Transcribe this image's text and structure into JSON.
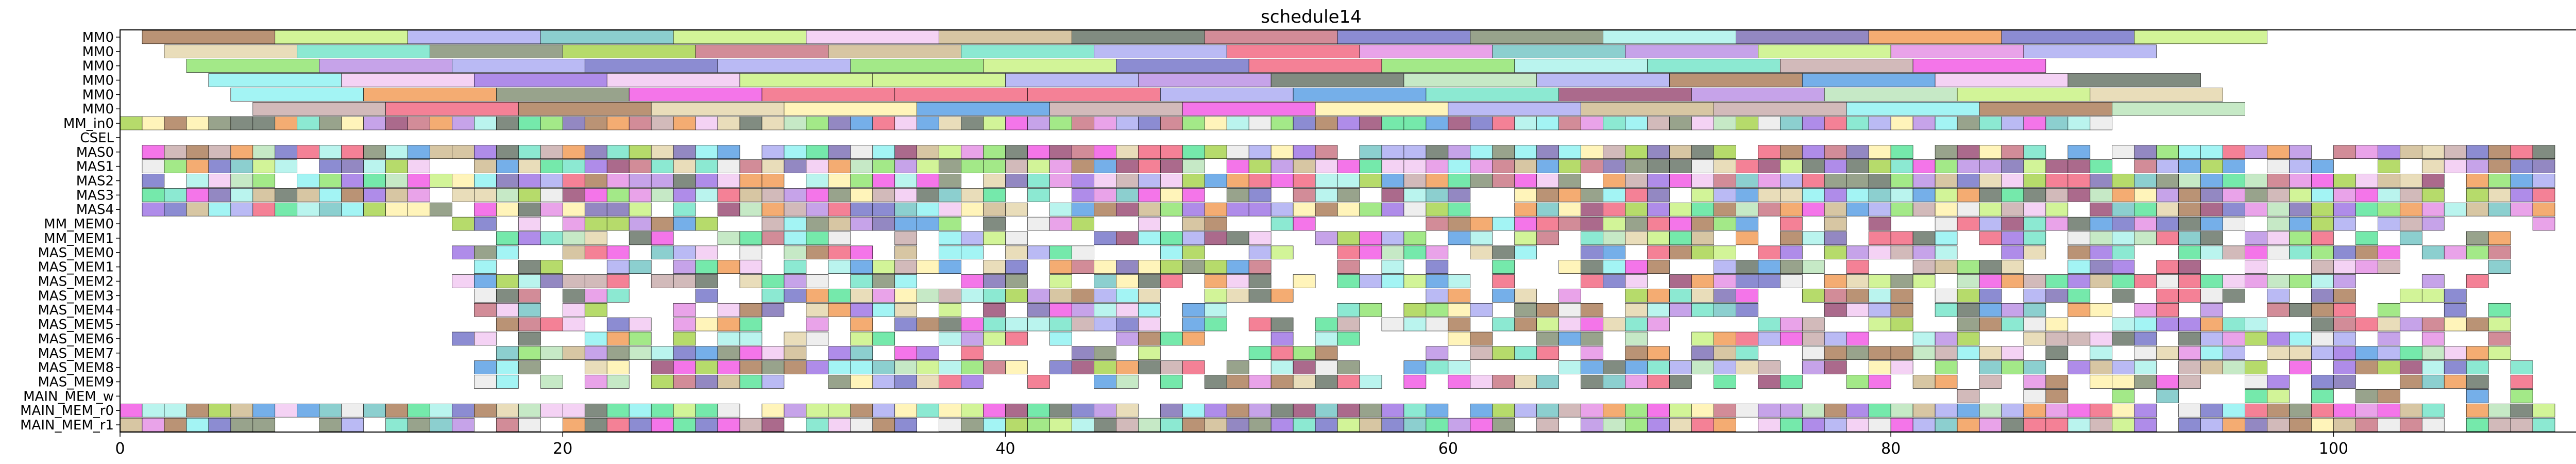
{
  "chart_data": {
    "type": "gantt",
    "title": "schedule14",
    "xlabel": "",
    "ylabel": "",
    "xlim": [
      0,
      111
    ],
    "x_ticks": [
      "0",
      "20",
      "40",
      "60",
      "80",
      "100"
    ],
    "x_tick_values": [
      0,
      20,
      40,
      60,
      80,
      100
    ],
    "rows": [
      "MM0",
      "MM0",
      "MM0",
      "MM0",
      "MM0",
      "MM0",
      "MM_in0",
      "CSEL",
      "MAS0",
      "MAS1",
      "MAS2",
      "MAS3",
      "MAS4",
      "MM_MEM0",
      "MM_MEM1",
      "MAS_MEM0",
      "MAS_MEM1",
      "MAS_MEM2",
      "MAS_MEM3",
      "MAS_MEM4",
      "MAS_MEM5",
      "MAS_MEM6",
      "MAS_MEM7",
      "MAS_MEM8",
      "MAS_MEM9",
      "MAIN_MEM_w",
      "MAIN_MEM_r0",
      "MAIN_MEM_r1"
    ],
    "lanes": [
      {
        "start": 1,
        "end": 97,
        "duration": 6,
        "pattern": "full"
      },
      {
        "start": 2,
        "end": 96,
        "duration": 6,
        "pattern": "full"
      },
      {
        "start": 3,
        "end": 92,
        "duration": 6,
        "pattern": "full"
      },
      {
        "start": 4,
        "end": 94,
        "duration": 6,
        "pattern": "full"
      },
      {
        "start": 5,
        "end": 95,
        "duration": 6,
        "pattern": "full"
      },
      {
        "start": 6,
        "end": 96,
        "duration": 6,
        "pattern": "full"
      },
      {
        "start": 0,
        "end": 90,
        "duration": 1,
        "pattern": "full"
      },
      {
        "start": 0,
        "end": 0,
        "duration": 1,
        "pattern": "none"
      },
      {
        "start": 1,
        "end": 110,
        "duration": 1,
        "pattern": "dense"
      },
      {
        "start": 1,
        "end": 110,
        "duration": 1,
        "pattern": "dense"
      },
      {
        "start": 1,
        "end": 110,
        "duration": 1,
        "pattern": "dense"
      },
      {
        "start": 1,
        "end": 110,
        "duration": 1,
        "pattern": "dense"
      },
      {
        "start": 1,
        "end": 110,
        "duration": 1,
        "pattern": "dense"
      },
      {
        "start": 15,
        "end": 110,
        "duration": 1,
        "pattern": "medium"
      },
      {
        "start": 15,
        "end": 108,
        "duration": 1,
        "pattern": "medium"
      },
      {
        "start": 15,
        "end": 108,
        "duration": 1,
        "pattern": "medium"
      },
      {
        "start": 15,
        "end": 108,
        "duration": 1,
        "pattern": "medium"
      },
      {
        "start": 15,
        "end": 108,
        "duration": 1,
        "pattern": "medium"
      },
      {
        "start": 16,
        "end": 108,
        "duration": 1,
        "pattern": "medium"
      },
      {
        "start": 16,
        "end": 108,
        "duration": 1,
        "pattern": "medium"
      },
      {
        "start": 16,
        "end": 108,
        "duration": 1,
        "pattern": "medium"
      },
      {
        "start": 15,
        "end": 108,
        "duration": 1,
        "pattern": "medium"
      },
      {
        "start": 16,
        "end": 108,
        "duration": 1,
        "pattern": "medium"
      },
      {
        "start": 16,
        "end": 109,
        "duration": 1,
        "pattern": "medium"
      },
      {
        "start": 16,
        "end": 109,
        "duration": 1,
        "pattern": "medium"
      },
      {
        "start": 82,
        "end": 111,
        "duration": 1,
        "pattern": "sparse"
      },
      {
        "start": 0,
        "end": 110,
        "duration": 1,
        "pattern": "dense"
      },
      {
        "start": 0,
        "end": 110,
        "duration": 1,
        "pattern": "dense"
      }
    ],
    "palette": [
      "#9acd32",
      "#5fbdbd",
      "#fff0a0",
      "#f0506e",
      "#7fe05a",
      "#c8b080",
      "#6a5aaa",
      "#40e08a",
      "#f040e0",
      "#c06070",
      "#b080e0",
      "#a0f0e8",
      "#8a3060",
      "#80f0f0",
      "#4090e0",
      "#c0a0a0",
      "#f08c3c",
      "#708060",
      "#c0f070",
      "#e0d0a0",
      "#a0a0f0",
      "#6060c0",
      "#b0e0b0",
      "#e080e0",
      "#e8e8e8",
      "#506050",
      "#f0c0f0",
      "#9060e0",
      "#a06a40",
      "#60e0c0"
    ],
    "grid": false,
    "legend": "none"
  }
}
